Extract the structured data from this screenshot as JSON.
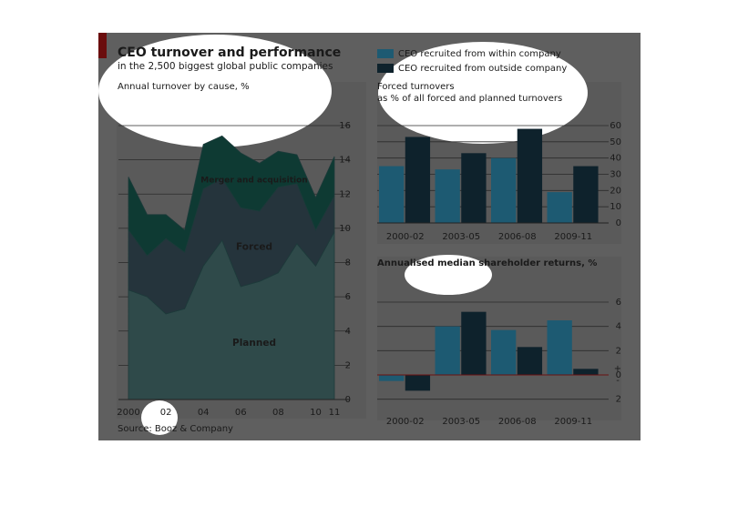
{
  "header": {
    "title": "CEO turnover and performance",
    "subtitle": "in the 2,500 biggest global public companies"
  },
  "source": "Source: Booz & Company",
  "chart_data": [
    {
      "type": "area",
      "subtitle": "Annual turnover by cause, %",
      "x": [
        2000,
        2001,
        2002,
        2003,
        2004,
        2005,
        2006,
        2007,
        2008,
        2009,
        2010,
        2011
      ],
      "xticks": [
        2000,
        {
          "value": 2002,
          "label": "02"
        },
        {
          "value": 2004,
          "label": "04"
        },
        {
          "value": 2006,
          "label": "06"
        },
        {
          "value": 2008,
          "label": "08"
        },
        {
          "value": 2010,
          "label": "10"
        },
        {
          "value": 2011,
          "label": "11"
        }
      ],
      "xlim": [
        2000,
        2011
      ],
      "ylim": [
        0,
        16
      ],
      "yticks": [
        0,
        2,
        4,
        6,
        8,
        10,
        12,
        14,
        16
      ],
      "grid": true,
      "stacked": true,
      "series": [
        {
          "name": "Planned",
          "color": "#2f4a4a",
          "values": [
            6.4,
            6.0,
            5.0,
            5.3,
            7.8,
            9.3,
            6.6,
            6.9,
            7.4,
            9.1,
            7.8,
            9.8
          ]
        },
        {
          "name": "Forced",
          "color": "#25343c",
          "values": [
            3.5,
            2.4,
            4.4,
            3.3,
            4.5,
            3.6,
            4.6,
            4.1,
            5.0,
            3.5,
            2.1,
            2.1
          ]
        },
        {
          "name": "Merger and acquisition",
          "color": "#0e3a33",
          "values": [
            3.1,
            2.4,
            1.4,
            1.3,
            2.6,
            2.5,
            3.2,
            2.8,
            2.1,
            1.7,
            1.9,
            2.3
          ]
        }
      ]
    },
    {
      "type": "bar",
      "title": "Forced turnovers",
      "subtitle": "as % of all forced and planned turnovers",
      "categories": [
        "2000-02",
        "2003-05",
        "2006-08",
        "2009-11"
      ],
      "ylim": [
        0,
        60
      ],
      "yticks": [
        0,
        10,
        20,
        30,
        40,
        50,
        60
      ],
      "grid": true,
      "legend": "top",
      "series": [
        {
          "name": "CEO recruited from within company",
          "color": "#1d5a72",
          "values": [
            35,
            33,
            40,
            19
          ]
        },
        {
          "name": "CEO recruited from outside company",
          "color": "#0e222c",
          "values": [
            53,
            43,
            58,
            35
          ]
        }
      ]
    },
    {
      "type": "bar",
      "title": "Annualised median shareholder returns, %",
      "categories": [
        "2000-02",
        "2003-05",
        "2006-08",
        "2009-11"
      ],
      "ylim": [
        -3,
        9
      ],
      "yticks": [
        {
          "value": -2,
          "label": "2"
        },
        0,
        2,
        4,
        6
      ],
      "axis_signs": [
        "+",
        "-"
      ],
      "grid": true,
      "series": [
        {
          "name": "CEO recruited from within company",
          "color": "#1d5a72",
          "values": [
            -0.5,
            4.0,
            3.7,
            4.5
          ]
        },
        {
          "name": "CEO recruited from outside company",
          "color": "#0e222c",
          "values": [
            -1.3,
            5.2,
            2.3,
            0.5
          ]
        }
      ]
    }
  ]
}
